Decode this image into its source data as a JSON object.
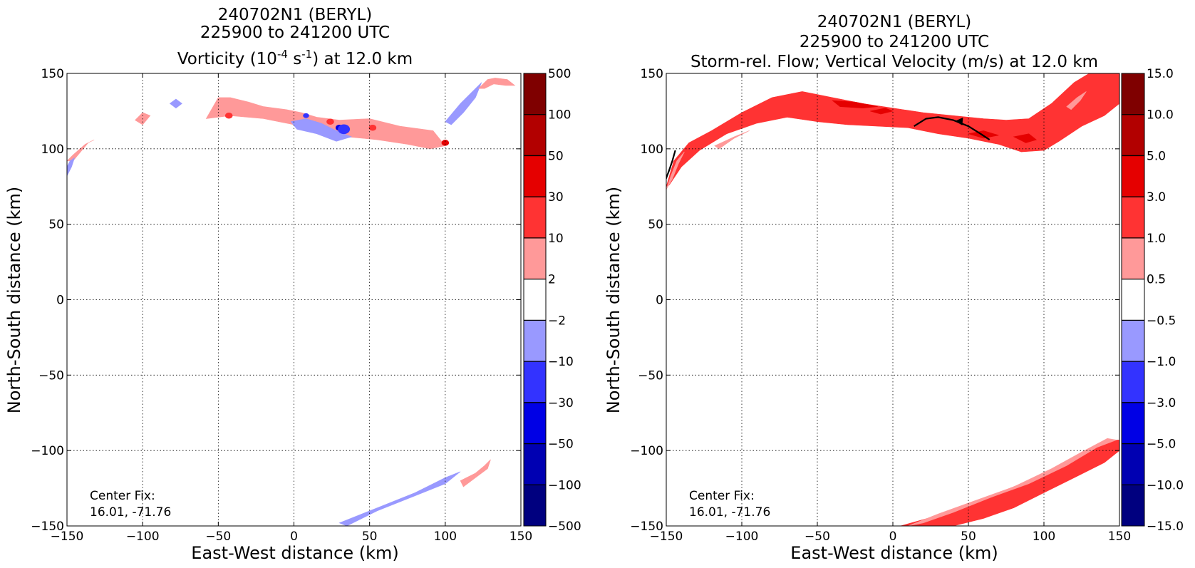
{
  "chart_data": [
    {
      "type": "contour",
      "title": [
        "240702N1 (BERYL)",
        "225900 to 241200 UTC"
      ],
      "title_line3": {
        "before": "Vorticity (10",
        "exp1": "-4",
        "mid": " s",
        "exp2": "-1",
        "after": ") at 12.0 km"
      },
      "xlabel": "East-West distance (km)",
      "ylabel": "North-South distance (km)",
      "xlim": [
        -150,
        150
      ],
      "ylim": [
        -150,
        150
      ],
      "xticks": [
        -150,
        -100,
        -50,
        0,
        50,
        100,
        150
      ],
      "yticks": [
        -150,
        -100,
        -50,
        0,
        50,
        100,
        150
      ],
      "xticklabels": [
        "−150",
        "−100",
        "−50",
        "0",
        "50",
        "100",
        "150"
      ],
      "yticklabels": [
        "−150",
        "−100",
        "−50",
        "0",
        "50",
        "100",
        "150"
      ],
      "grid": true,
      "annotation": {
        "line1": "Center Fix:",
        "line2": "16.01, -71.76"
      },
      "colorbar": {
        "levels": [
          "−500",
          "−100",
          "−50",
          "−30",
          "−10",
          "−2",
          "2",
          "10",
          "30",
          "50",
          "100",
          "500"
        ],
        "colors": [
          "#00007f",
          "#0000b2",
          "#0000e5",
          "#3333ff",
          "#9999ff",
          "#ffffff",
          "#ff9999",
          "#ff3333",
          "#e50000",
          "#b20000",
          "#7f0000"
        ]
      },
      "regions": [
        {
          "level": "2 to 10",
          "color": "#ff9999",
          "points": [
            [
              -150,
              92
            ],
            [
              -146,
              96
            ],
            [
              -138,
              103
            ],
            [
              -132,
              106
            ],
            [
              -136,
              104
            ],
            [
              -146,
              92
            ]
          ]
        },
        {
          "level": "2 to 10",
          "color": "#ff9999",
          "points": [
            [
              -105,
              119
            ],
            [
              -100,
              124
            ],
            [
              -95,
              122
            ],
            [
              -100,
              116
            ]
          ]
        },
        {
          "level": "-10 to -2",
          "color": "#9999ff",
          "points": [
            [
              -82,
              130
            ],
            [
              -78,
              133
            ],
            [
              -74,
              130
            ],
            [
              -78,
              127
            ]
          ]
        },
        {
          "level": "2 to 10",
          "color": "#ff9999",
          "points": [
            [
              -58,
              120
            ],
            [
              -50,
              134
            ],
            [
              -42,
              134
            ],
            [
              -30,
              131
            ],
            [
              -20,
              128
            ],
            [
              -5,
              126
            ],
            [
              5,
              124
            ],
            [
              15,
              121
            ],
            [
              30,
              119
            ],
            [
              50,
              120
            ],
            [
              70,
              115
            ],
            [
              92,
              112
            ],
            [
              100,
              102
            ],
            [
              90,
              100
            ],
            [
              75,
              103
            ],
            [
              55,
              106
            ],
            [
              35,
              108
            ],
            [
              15,
              113
            ],
            [
              0,
              116
            ],
            [
              -20,
              120
            ],
            [
              -42,
              122
            ]
          ]
        },
        {
          "level": "-10 to -2",
          "color": "#9999ff",
          "points": [
            [
              -2,
              118
            ],
            [
              8,
              120
            ],
            [
              18,
              117
            ],
            [
              28,
              112
            ],
            [
              38,
              108
            ],
            [
              28,
              105
            ],
            [
              15,
              110
            ],
            [
              2,
              113
            ]
          ]
        },
        {
          "level": "-10 to -2",
          "color": "#9999ff",
          "points": [
            [
              100,
              118
            ],
            [
              110,
              130
            ],
            [
              118,
              138
            ],
            [
              124,
              144
            ],
            [
              120,
              134
            ],
            [
              112,
              124
            ],
            [
              104,
              116
            ]
          ]
        },
        {
          "level": "2 to 10",
          "color": "#ff9999",
          "points": [
            [
              122,
              140
            ],
            [
              128,
              146
            ],
            [
              133,
              147
            ],
            [
              141,
              146
            ],
            [
              146,
              142
            ],
            [
              140,
              142
            ],
            [
              132,
              143
            ],
            [
              126,
              140
            ]
          ]
        },
        {
          "level": "-10 to -2",
          "color": "#9999ff",
          "points": [
            [
              -150,
              82
            ],
            [
              -147,
              88
            ],
            [
              -145,
              94
            ],
            [
              -148,
              92
            ],
            [
              -150,
              88
            ]
          ]
        },
        {
          "level": "-10 to -2",
          "color": "#9999ff",
          "points": [
            [
              30,
              -148
            ],
            [
              55,
              -138
            ],
            [
              80,
              -128
            ],
            [
              100,
              -118
            ],
            [
              110,
              -114
            ],
            [
              100,
              -122
            ],
            [
              80,
              -130
            ],
            [
              55,
              -140
            ],
            [
              35,
              -150
            ]
          ]
        },
        {
          "level": "2 to 10",
          "color": "#ff9999",
          "points": [
            [
              110,
              -120
            ],
            [
              120,
              -115
            ],
            [
              126,
              -110
            ],
            [
              130,
              -106
            ],
            [
              128,
              -112
            ],
            [
              120,
              -118
            ],
            [
              112,
              -124
            ]
          ]
        }
      ],
      "spots": [
        {
          "level": "-50 to -30",
          "color": "#0000e5",
          "x": 30,
          "y": 114,
          "r": 2.5
        },
        {
          "level": "-30 to -10",
          "color": "#3333ff",
          "x": 33,
          "y": 113,
          "r": 4
        },
        {
          "level": "10 to 30",
          "color": "#ff3333",
          "x": 24,
          "y": 118,
          "r": 2.5
        },
        {
          "level": "10 to 30",
          "color": "#ff3333",
          "x": 52,
          "y": 114,
          "r": 2.5
        },
        {
          "level": "30 to 50",
          "color": "#e50000",
          "x": 100,
          "y": 104,
          "r": 2.5
        },
        {
          "level": "10 to 30",
          "color": "#ff3333",
          "x": -43,
          "y": 122,
          "r": 2.5
        },
        {
          "level": "-30 to -10",
          "color": "#3333ff",
          "x": 8,
          "y": 122,
          "r": 2
        }
      ]
    },
    {
      "type": "contour",
      "title": [
        "240702N1 (BERYL)",
        "225900 to 241200 UTC"
      ],
      "title_line3": {
        "text": "Storm-rel. Flow; Vertical Velocity (m/s) at 12.0 km"
      },
      "xlabel": "East-West distance (km)",
      "ylabel": "North-South distance (km)",
      "xlim": [
        -150,
        150
      ],
      "ylim": [
        -150,
        150
      ],
      "xticks": [
        -150,
        -100,
        -50,
        0,
        50,
        100,
        150
      ],
      "yticks": [
        -150,
        -100,
        -50,
        0,
        50,
        100,
        150
      ],
      "xticklabels": [
        "−150",
        "−100",
        "−50",
        "0",
        "50",
        "100",
        "150"
      ],
      "yticklabels": [
        "−150",
        "−100",
        "−50",
        "0",
        "50",
        "100",
        "150"
      ],
      "grid": true,
      "annotation": {
        "line1": "Center Fix:",
        "line2": "16.01, -71.76"
      },
      "colorbar": {
        "levels": [
          "−15.0",
          "−10.0",
          "−5.0",
          "−3.0",
          "−1.0",
          "−0.5",
          "0.5",
          "1.0",
          "3.0",
          "5.0",
          "10.0",
          "15.0"
        ],
        "colors": [
          "#00007f",
          "#0000b2",
          "#0000e5",
          "#3333ff",
          "#9999ff",
          "#ffffff",
          "#ff9999",
          "#ff3333",
          "#e50000",
          "#b20000",
          "#7f0000"
        ]
      },
      "regions": [
        {
          "level": "1.0 to 3.0",
          "color": "#ff3333",
          "points": [
            [
              -150,
              75
            ],
            [
              -145,
              92
            ],
            [
              -135,
              104
            ],
            [
              -120,
              112
            ],
            [
              -100,
              124
            ],
            [
              -80,
              134
            ],
            [
              -60,
              138
            ],
            [
              -40,
              134
            ],
            [
              -20,
              130
            ],
            [
              0,
              127
            ],
            [
              20,
              124
            ],
            [
              40,
              122
            ],
            [
              60,
              120
            ],
            [
              75,
              119
            ],
            [
              90,
              120
            ],
            [
              105,
              130
            ],
            [
              120,
              144
            ],
            [
              130,
              150
            ],
            [
              150,
              150
            ],
            [
              150,
              130
            ],
            [
              140,
              122
            ],
            [
              125,
              115
            ],
            [
              110,
              105
            ],
            [
              100,
              99
            ],
            [
              85,
              98
            ],
            [
              70,
              103
            ],
            [
              50,
              107
            ],
            [
              30,
              110
            ],
            [
              10,
              114
            ],
            [
              -10,
              115
            ],
            [
              -30,
              116
            ],
            [
              -50,
              118
            ],
            [
              -70,
              121
            ],
            [
              -90,
              117
            ],
            [
              -110,
              110
            ],
            [
              -128,
              99
            ],
            [
              -140,
              88
            ],
            [
              -148,
              76
            ]
          ]
        },
        {
          "level": "0.5 to 1.0",
          "color": "#ff9999",
          "points": [
            [
              -150,
              73
            ],
            [
              -147,
              82
            ],
            [
              -143,
              92
            ],
            [
              -138,
              98
            ],
            [
              -142,
              90
            ],
            [
              -146,
              80
            ]
          ]
        },
        {
          "level": "0.5 to 1.0",
          "color": "#ff9999",
          "points": [
            [
              -118,
              102
            ],
            [
              -105,
              108
            ],
            [
              -95,
              112
            ],
            [
              -105,
              107
            ],
            [
              -115,
              100
            ]
          ]
        },
        {
          "level": "3.0 to 5.0",
          "color": "#e50000",
          "points": [
            [
              -40,
              132
            ],
            [
              -25,
              131
            ],
            [
              -10,
              128
            ],
            [
              -20,
              127
            ],
            [
              -35,
              128
            ]
          ]
        },
        {
          "level": "3.0 to 5.0",
          "color": "#e50000",
          "points": [
            [
              -15,
              125
            ],
            [
              -5,
              127
            ],
            [
              0,
              125
            ],
            [
              -8,
              123
            ]
          ]
        },
        {
          "level": "3.0 to 5.0",
          "color": "#e50000",
          "points": [
            [
              50,
              110
            ],
            [
              60,
              112
            ],
            [
              70,
              109
            ],
            [
              60,
              107
            ]
          ]
        },
        {
          "level": "3.0 to 5.0",
          "color": "#e50000",
          "points": [
            [
              80,
              108
            ],
            [
              90,
              110
            ],
            [
              95,
              106
            ],
            [
              88,
              104
            ]
          ]
        },
        {
          "level": "0.5 to 1.0",
          "color": "#ff9999",
          "points": [
            [
              115,
              128
            ],
            [
              122,
              134
            ],
            [
              128,
              138
            ],
            [
              124,
              132
            ],
            [
              118,
              126
            ]
          ]
        },
        {
          "level": "1.0 to 3.0",
          "color": "#ff3333",
          "points": [
            [
              5,
              -150
            ],
            [
              30,
              -143
            ],
            [
              60,
              -132
            ],
            [
              90,
              -120
            ],
            [
              110,
              -110
            ],
            [
              130,
              -100
            ],
            [
              145,
              -93
            ],
            [
              150,
              -93
            ],
            [
              150,
              -100
            ],
            [
              140,
              -108
            ],
            [
              120,
              -118
            ],
            [
              100,
              -128
            ],
            [
              80,
              -138
            ],
            [
              60,
              -145
            ],
            [
              40,
              -150
            ]
          ]
        },
        {
          "level": "0.5 to 1.0",
          "color": "#ff9999",
          "points": [
            [
              10,
              -150
            ],
            [
              30,
              -142
            ],
            [
              55,
              -133
            ],
            [
              80,
              -124
            ],
            [
              105,
              -112
            ],
            [
              125,
              -101
            ],
            [
              142,
              -92
            ],
            [
              148,
              -93
            ],
            [
              135,
              -98
            ],
            [
              115,
              -110
            ],
            [
              90,
              -122
            ],
            [
              65,
              -131
            ],
            [
              40,
              -141
            ],
            [
              20,
              -148
            ]
          ]
        }
      ],
      "streamlines": [
        [
          [
            -151,
            78
          ],
          [
            -148,
            86
          ],
          [
            -146,
            92
          ],
          [
            -144,
            99
          ]
        ],
        [
          [
            14,
            115
          ],
          [
            22,
            120
          ],
          [
            30,
            121
          ],
          [
            40,
            119
          ],
          [
            50,
            115
          ],
          [
            58,
            110
          ],
          [
            64,
            106
          ]
        ]
      ],
      "arrows": [
        {
          "x": 45,
          "y": 117
        }
      ]
    }
  ]
}
